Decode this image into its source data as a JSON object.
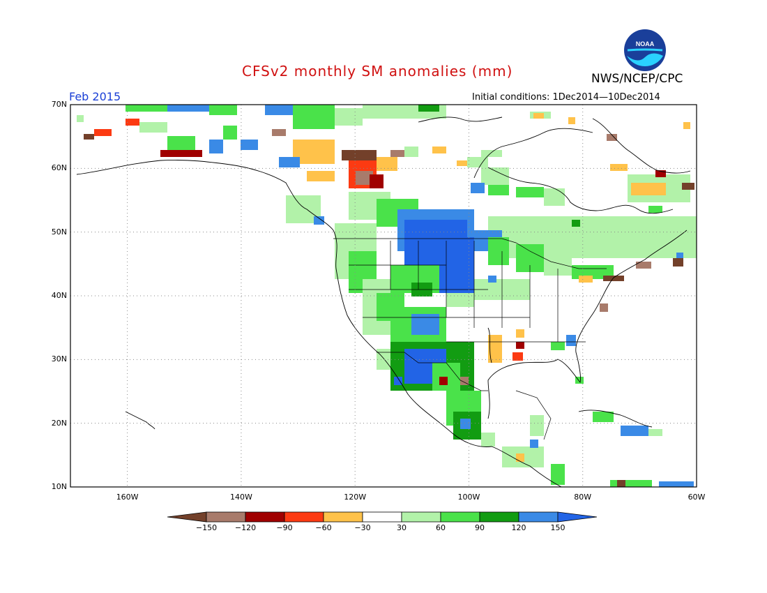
{
  "header": {
    "title": "CFSv2 monthly SM anomalies (mm)",
    "agency": "NWS/NCEP/CPC",
    "month": "Feb 2015",
    "initial_conditions": "Initial conditions: 1Dec2014—10Dec2014",
    "logo_text": "NOAA"
  },
  "map": {
    "lat_labels": [
      "70N",
      "60N",
      "50N",
      "40N",
      "30N",
      "20N",
      "10N"
    ],
    "lon_labels": [
      "160W",
      "140W",
      "120W",
      "100W",
      "80W",
      "60W"
    ],
    "lat_range": [
      10,
      70
    ],
    "lon_range": [
      -170,
      -60
    ],
    "grid": "dotted",
    "land_color": "#ffffff",
    "border_color": "#000000"
  },
  "colorbar": {
    "labels": [
      "−150",
      "−120",
      "−90",
      "−60",
      "−30",
      "30",
      "60",
      "90",
      "120",
      "150"
    ],
    "colors": [
      "#73402a",
      "#a87b6b",
      "#a00000",
      "#fc3a12",
      "#ffc24a",
      "#ffffff",
      "#b2f2a9",
      "#4ae24a",
      "#129c12",
      "#3a8ae6",
      "#2264e6"
    ],
    "units": "mm"
  },
  "anomaly_regions": [
    {
      "name": "northern-plains",
      "category": "150",
      "color": "#2264e6"
    },
    {
      "name": "southwest",
      "category": "120",
      "color": "#3a8ae6"
    },
    {
      "name": "western-canada",
      "category": "-60",
      "color": "#ffc24a"
    },
    {
      "name": "eastern-canada",
      "category": "60",
      "color": "#b2f2a9"
    }
  ]
}
